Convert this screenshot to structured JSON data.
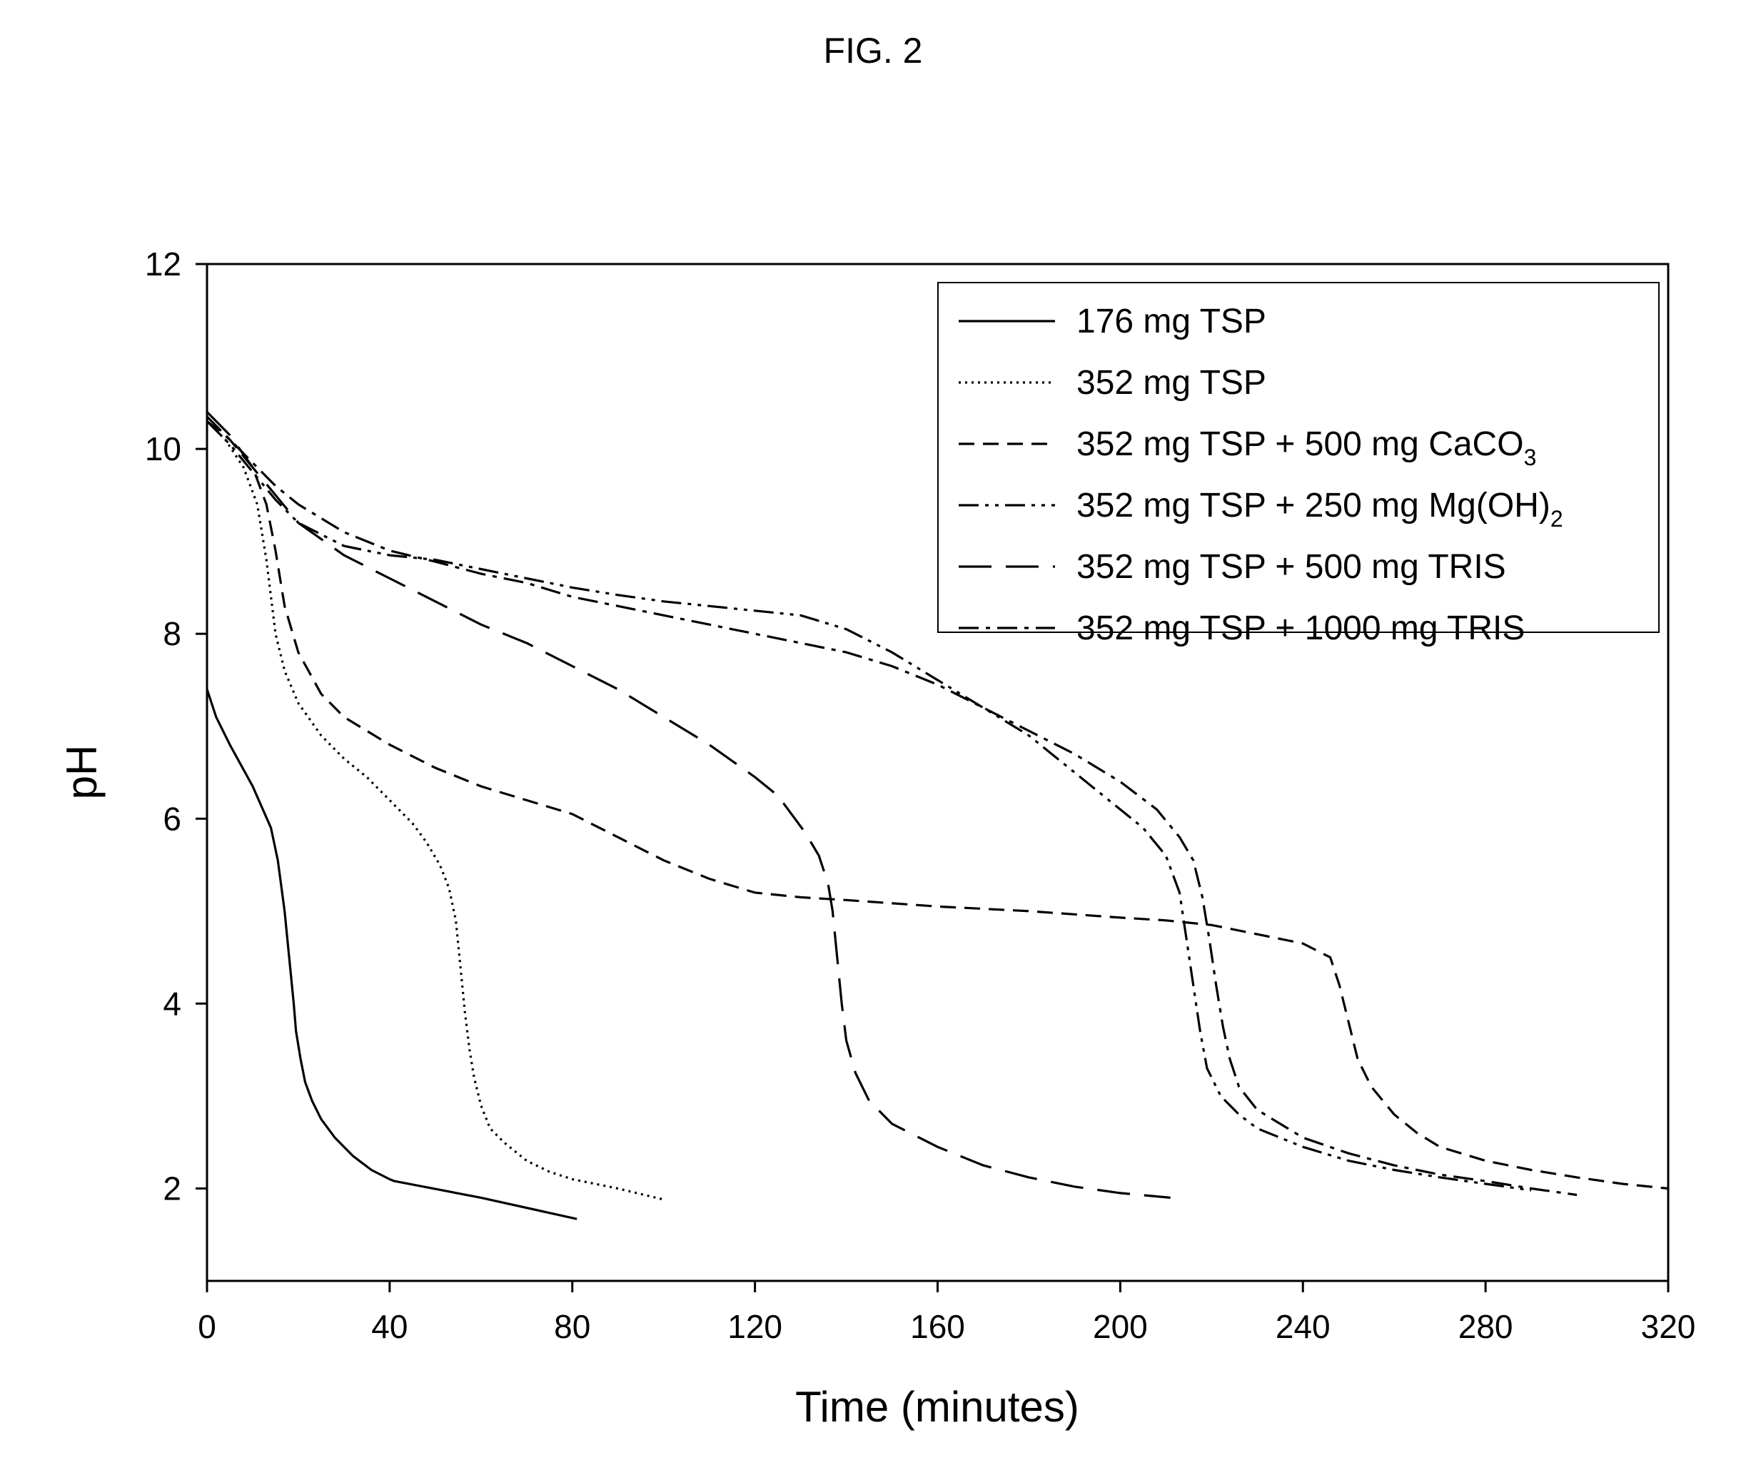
{
  "figure_label": "FIG. 2",
  "chart_data": {
    "type": "line",
    "title": "",
    "xlabel": "Time (minutes)",
    "ylabel": "pH",
    "xlim": [
      0,
      320
    ],
    "ylim": [
      1,
      12
    ],
    "xticks": [
      0,
      40,
      80,
      120,
      160,
      200,
      240,
      280,
      320
    ],
    "yticks": [
      2,
      4,
      6,
      8,
      10,
      12
    ],
    "xtick_labels": [
      "0",
      "40",
      "80",
      "120",
      "160",
      "200",
      "240",
      "280",
      "320"
    ],
    "ytick_labels": [
      "2",
      "4",
      "6",
      "8",
      "10",
      "12"
    ],
    "grid": false,
    "legend_position": "top-right",
    "series": [
      {
        "name": "176 mg TSP",
        "legend_main": "176 mg TSP",
        "legend_sub": "",
        "legend_tail": "",
        "dash": "solid",
        "x": [
          0,
          2,
          5,
          10,
          14,
          15.5,
          17,
          18,
          19,
          19.5,
          20.5,
          21.5,
          23,
          25,
          28,
          32,
          36,
          40,
          41,
          60,
          81
        ],
        "y": [
          7.4,
          7.1,
          6.8,
          6.35,
          5.9,
          5.55,
          5.0,
          4.5,
          4.0,
          3.7,
          3.4,
          3.15,
          2.95,
          2.75,
          2.55,
          2.35,
          2.2,
          2.1,
          2.08,
          1.9,
          1.67
        ]
      },
      {
        "name": "352 mg TSP",
        "legend_main": "352 mg TSP",
        "legend_sub": "",
        "legend_tail": "",
        "dash": "dotted",
        "x": [
          0,
          4,
          8,
          11,
          13,
          15,
          17,
          20,
          25,
          30,
          35,
          40,
          45,
          48,
          51,
          53,
          54.5,
          55.5,
          56.5,
          57.5,
          58.5,
          60,
          62,
          65,
          70,
          75,
          80,
          90,
          100
        ],
        "y": [
          10.3,
          10.1,
          9.8,
          9.4,
          8.8,
          8.0,
          7.6,
          7.25,
          6.9,
          6.65,
          6.45,
          6.2,
          5.95,
          5.75,
          5.5,
          5.25,
          4.9,
          4.4,
          3.9,
          3.5,
          3.2,
          2.9,
          2.65,
          2.5,
          2.3,
          2.18,
          2.1,
          2.0,
          1.88
        ]
      },
      {
        "name": "352 mg TSP + 500 mg CaCO3",
        "legend_main": "352 mg TSP + 500 mg CaCO",
        "legend_sub": "3",
        "legend_tail": "",
        "dash": "dashed",
        "x": [
          0,
          5,
          10,
          13,
          15,
          17,
          20,
          25,
          30,
          40,
          50,
          60,
          70,
          80,
          90,
          100,
          110,
          120,
          130,
          140,
          160,
          180,
          200,
          210,
          220,
          230,
          240,
          246,
          248,
          250,
          252,
          255,
          260,
          265,
          270,
          280,
          290,
          300,
          310,
          320
        ],
        "y": [
          10.3,
          10.1,
          9.8,
          9.4,
          8.9,
          8.3,
          7.8,
          7.35,
          7.1,
          6.8,
          6.55,
          6.35,
          6.2,
          6.05,
          5.8,
          5.55,
          5.35,
          5.2,
          5.15,
          5.12,
          5.05,
          5.0,
          4.93,
          4.9,
          4.85,
          4.75,
          4.65,
          4.5,
          4.2,
          3.8,
          3.4,
          3.1,
          2.8,
          2.6,
          2.45,
          2.3,
          2.2,
          2.12,
          2.05,
          2.0
        ]
      },
      {
        "name": "352 mg TSP + 250 mg Mg(OH)2",
        "legend_main": "352 mg TSP + 250 mg Mg(OH)",
        "legend_sub": "2",
        "legend_tail": "",
        "dash": "dashdotdot",
        "x": [
          0,
          5,
          10,
          15,
          20,
          30,
          40,
          50,
          60,
          70,
          80,
          90,
          100,
          110,
          120,
          130,
          140,
          150,
          160,
          170,
          180,
          190,
          200,
          205,
          210,
          213,
          214.5,
          216,
          217.5,
          219,
          222,
          226,
          230,
          240,
          250,
          260,
          270,
          280,
          290
        ],
        "y": [
          10.3,
          10.05,
          9.75,
          9.45,
          9.2,
          8.95,
          8.85,
          8.8,
          8.7,
          8.6,
          8.5,
          8.42,
          8.35,
          8.3,
          8.25,
          8.2,
          8.05,
          7.8,
          7.5,
          7.2,
          6.9,
          6.5,
          6.1,
          5.9,
          5.6,
          5.2,
          4.7,
          4.2,
          3.7,
          3.3,
          3.0,
          2.8,
          2.65,
          2.45,
          2.3,
          2.2,
          2.12,
          2.05,
          1.98
        ]
      },
      {
        "name": "352 mg TSP + 500 mg TRIS",
        "legend_main": "352 mg TSP + 500 mg TRIS",
        "legend_sub": "",
        "legend_tail": "",
        "dash": "longdash",
        "x": [
          0,
          5,
          10,
          15,
          20,
          30,
          40,
          50,
          60,
          70,
          80,
          90,
          100,
          110,
          120,
          125,
          128,
          131,
          134,
          136,
          137,
          138,
          139,
          140,
          142,
          145,
          150,
          160,
          170,
          180,
          190,
          200,
          211
        ],
        "y": [
          10.4,
          10.15,
          9.8,
          9.5,
          9.2,
          8.85,
          8.6,
          8.35,
          8.1,
          7.9,
          7.65,
          7.4,
          7.1,
          6.8,
          6.45,
          6.25,
          6.05,
          5.85,
          5.6,
          5.3,
          5.0,
          4.5,
          4.0,
          3.6,
          3.25,
          2.95,
          2.7,
          2.45,
          2.25,
          2.12,
          2.02,
          1.95,
          1.9
        ]
      },
      {
        "name": "352 mg TSP + 1000 mg TRIS",
        "legend_main": "352 mg TSP + 1000 mg TRIS",
        "legend_sub": "",
        "legend_tail": "",
        "dash": "dashdot",
        "x": [
          0,
          5,
          10,
          15,
          20,
          30,
          40,
          50,
          60,
          70,
          80,
          90,
          100,
          110,
          120,
          130,
          140,
          150,
          160,
          170,
          180,
          190,
          200,
          208,
          213,
          216,
          218,
          219.5,
          221,
          222.5,
          224,
          226,
          230,
          240,
          250,
          260,
          270,
          280,
          290,
          300
        ],
        "y": [
          10.35,
          10.1,
          9.85,
          9.6,
          9.4,
          9.1,
          8.9,
          8.78,
          8.65,
          8.55,
          8.4,
          8.3,
          8.2,
          8.1,
          8.0,
          7.9,
          7.8,
          7.65,
          7.45,
          7.2,
          6.95,
          6.7,
          6.4,
          6.1,
          5.8,
          5.55,
          5.15,
          4.7,
          4.2,
          3.75,
          3.4,
          3.1,
          2.85,
          2.55,
          2.38,
          2.25,
          2.15,
          2.08,
          2.0,
          1.93
        ]
      }
    ]
  }
}
